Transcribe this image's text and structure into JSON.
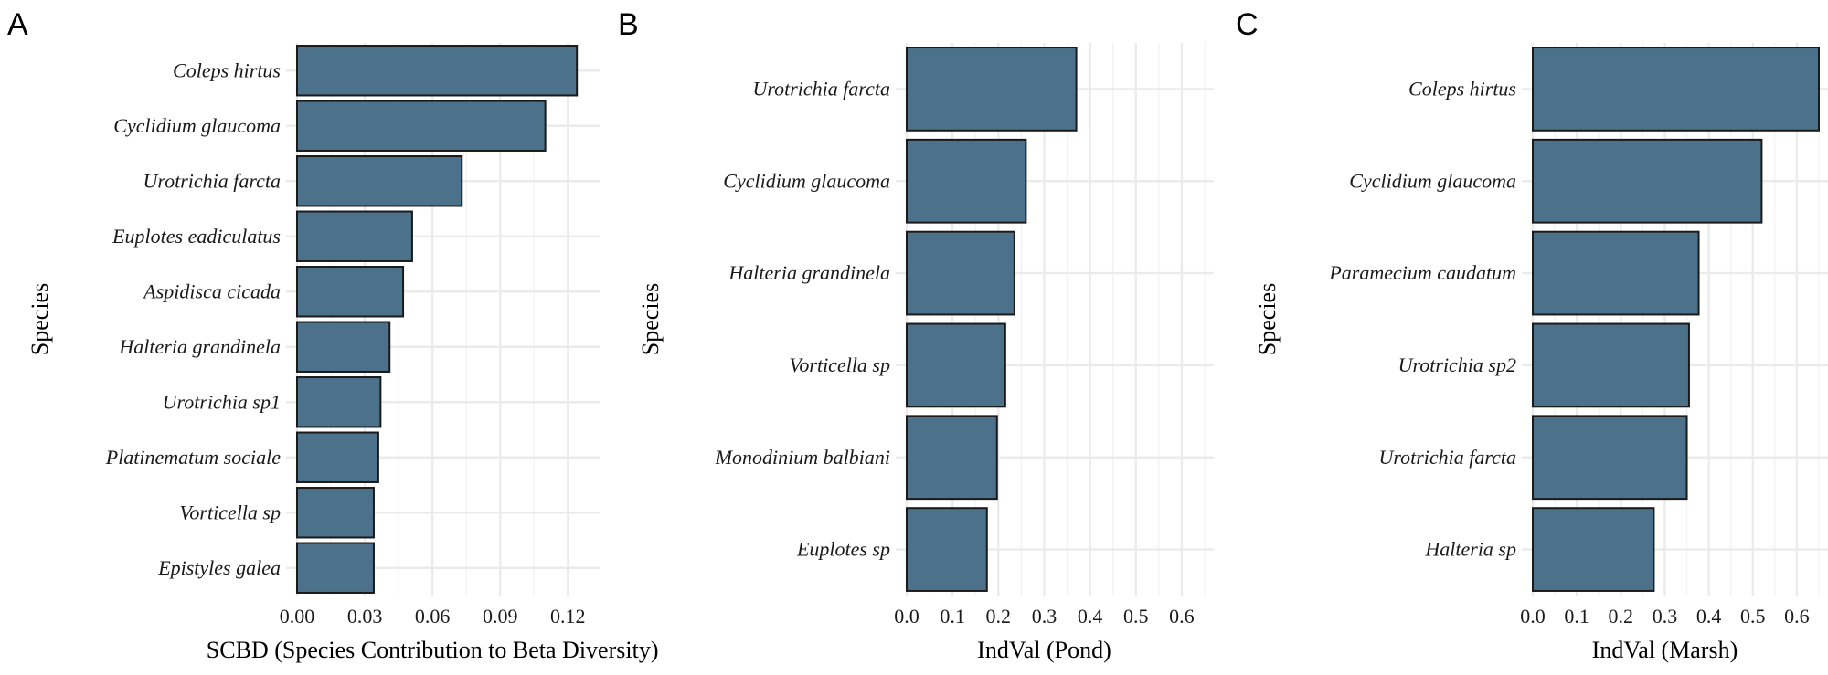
{
  "colors": {
    "bar_fill": "#4c718b",
    "bar_stroke": "#1a1a1a",
    "grid": "#ebebeb"
  },
  "chart_data": [
    {
      "panel": "A",
      "type": "bar",
      "orientation": "horizontal",
      "title": "",
      "xlabel": "SCBD (Species Contribution to Beta Diversity)",
      "ylabel": "Species",
      "xlim": [
        0,
        0.13
      ],
      "xticks": [
        0.0,
        0.03,
        0.06,
        0.09,
        0.12
      ],
      "xtick_labels": [
        "0.00",
        "0.03",
        "0.06",
        "0.09",
        "0.12"
      ],
      "grid": true,
      "categories": [
        "Coleps hirtus",
        "Cyclidium glaucoma",
        "Urotrichia farcta",
        "Euplotes eadiculatus",
        "Aspidisca cicada",
        "Halteria grandinela",
        "Urotrichia sp1",
        "Platinematum sociale",
        "Vorticella sp",
        "Epistyles galea"
      ],
      "values": [
        0.124,
        0.11,
        0.073,
        0.051,
        0.047,
        0.041,
        0.037,
        0.036,
        0.034,
        0.034
      ]
    },
    {
      "panel": "B",
      "type": "bar",
      "orientation": "horizontal",
      "title": "",
      "xlabel": "IndVal (Pond)",
      "ylabel": "Species",
      "xlim": [
        0,
        0.65
      ],
      "xticks": [
        0.0,
        0.1,
        0.2,
        0.3,
        0.4,
        0.5,
        0.6
      ],
      "xtick_labels": [
        "0.0",
        "0.1",
        "0.2",
        "0.3",
        "0.4",
        "0.5",
        "0.6"
      ],
      "grid": true,
      "categories": [
        "Urotrichia farcta",
        "Cyclidium glaucoma",
        "Halteria grandinela",
        "Vorticella sp",
        "Monodinium balbiani",
        "Euplotes sp"
      ],
      "values": [
        0.37,
        0.26,
        0.235,
        0.215,
        0.197,
        0.175
      ]
    },
    {
      "panel": "C",
      "type": "bar",
      "orientation": "horizontal",
      "title": "",
      "xlabel": "IndVal (Marsh)",
      "ylabel": "Species",
      "xlim": [
        0,
        0.65
      ],
      "xticks": [
        0.0,
        0.1,
        0.2,
        0.3,
        0.4,
        0.5,
        0.6
      ],
      "xtick_labels": [
        "0.0",
        "0.1",
        "0.2",
        "0.3",
        "0.4",
        "0.5",
        "0.6"
      ],
      "grid": true,
      "categories": [
        "Coleps hirtus",
        "Cyclidium glaucoma",
        "Paramecium caudatum",
        "Urotrichia sp2",
        "Urotrichia farcta",
        "Halteria sp"
      ],
      "values": [
        0.65,
        0.52,
        0.377,
        0.355,
        0.35,
        0.275
      ]
    }
  ]
}
